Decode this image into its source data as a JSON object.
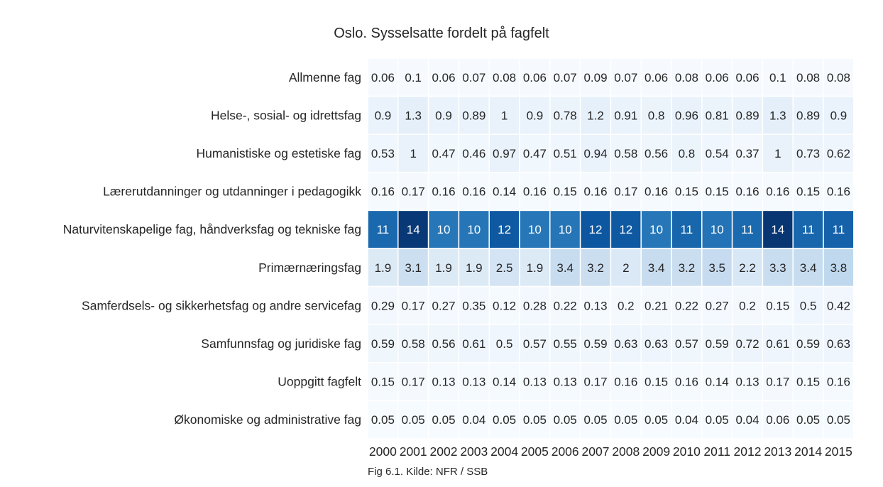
{
  "chart_data": {
    "type": "heatmap",
    "title": "Oslo. Sysselsatte fordelt på fagfelt",
    "caption": "Fig 6.1. Kilde: NFR / SSB",
    "colormap": "Blues",
    "color_min": 0,
    "color_max": 14,
    "x": [
      "2000",
      "2001",
      "2002",
      "2003",
      "2004",
      "2005",
      "2006",
      "2007",
      "2008",
      "2009",
      "2010",
      "2011",
      "2012",
      "2013",
      "2014",
      "2015"
    ],
    "y": [
      "Allmenne fag",
      "Helse-, sosial- og idrettsfag",
      "Humanistiske og estetiske fag",
      "Lærerutdanninger og utdanninger i pedagogikk",
      "Naturvitenskapelige fag, håndverksfag og tekniske fag",
      "Primærnæringsfag",
      "Samferdsels- og sikkerhetsfag og andre servicefag",
      "Samfunnsfag og juridiske fag",
      "Uoppgitt fagfelt",
      "Økonomiske og administrative fag"
    ],
    "labels": [
      [
        "0.06",
        "0.1",
        "0.06",
        "0.07",
        "0.08",
        "0.06",
        "0.07",
        "0.09",
        "0.07",
        "0.06",
        "0.08",
        "0.06",
        "0.06",
        "0.1",
        "0.08",
        "0.08"
      ],
      [
        "0.9",
        "1.3",
        "0.9",
        "0.89",
        "1",
        "0.9",
        "0.78",
        "1.2",
        "0.91",
        "0.8",
        "0.96",
        "0.81",
        "0.89",
        "1.3",
        "0.89",
        "0.9"
      ],
      [
        "0.53",
        "1",
        "0.47",
        "0.46",
        "0.97",
        "0.47",
        "0.51",
        "0.94",
        "0.58",
        "0.56",
        "0.8",
        "0.54",
        "0.37",
        "1",
        "0.73",
        "0.62"
      ],
      [
        "0.16",
        "0.17",
        "0.16",
        "0.16",
        "0.14",
        "0.16",
        "0.15",
        "0.16",
        "0.17",
        "0.16",
        "0.15",
        "0.15",
        "0.16",
        "0.16",
        "0.15",
        "0.16"
      ],
      [
        "11",
        "14",
        "10",
        "10",
        "12",
        "10",
        "10",
        "12",
        "12",
        "10",
        "11",
        "10",
        "11",
        "14",
        "11",
        "11"
      ],
      [
        "1.9",
        "3.1",
        "1.9",
        "1.9",
        "2.5",
        "1.9",
        "3.4",
        "3.2",
        "2",
        "3.4",
        "3.2",
        "3.5",
        "2.2",
        "3.3",
        "3.4",
        "3.8"
      ],
      [
        "0.29",
        "0.17",
        "0.27",
        "0.35",
        "0.12",
        "0.28",
        "0.22",
        "0.13",
        "0.2",
        "0.21",
        "0.22",
        "0.27",
        "0.2",
        "0.15",
        "0.5",
        "0.42"
      ],
      [
        "0.59",
        "0.58",
        "0.56",
        "0.61",
        "0.5",
        "0.57",
        "0.55",
        "0.59",
        "0.63",
        "0.63",
        "0.57",
        "0.59",
        "0.72",
        "0.61",
        "0.59",
        "0.63"
      ],
      [
        "0.15",
        "0.17",
        "0.13",
        "0.13",
        "0.14",
        "0.13",
        "0.13",
        "0.17",
        "0.16",
        "0.15",
        "0.16",
        "0.14",
        "0.13",
        "0.17",
        "0.15",
        "0.16"
      ],
      [
        "0.05",
        "0.05",
        "0.05",
        "0.04",
        "0.05",
        "0.05",
        "0.05",
        "0.05",
        "0.05",
        "0.05",
        "0.04",
        "0.05",
        "0.04",
        "0.06",
        "0.05",
        "0.05"
      ]
    ],
    "values": [
      [
        0.06,
        0.1,
        0.06,
        0.07,
        0.08,
        0.06,
        0.07,
        0.09,
        0.07,
        0.06,
        0.08,
        0.06,
        0.06,
        0.1,
        0.08,
        0.08
      ],
      [
        0.9,
        1.3,
        0.9,
        0.89,
        1,
        0.9,
        0.78,
        1.2,
        0.91,
        0.8,
        0.96,
        0.81,
        0.89,
        1.3,
        0.89,
        0.9
      ],
      [
        0.53,
        1,
        0.47,
        0.46,
        0.97,
        0.47,
        0.51,
        0.94,
        0.58,
        0.56,
        0.8,
        0.54,
        0.37,
        1,
        0.73,
        0.62
      ],
      [
        0.16,
        0.17,
        0.16,
        0.16,
        0.14,
        0.16,
        0.15,
        0.16,
        0.17,
        0.16,
        0.15,
        0.15,
        0.16,
        0.16,
        0.15,
        0.16
      ],
      [
        11.0,
        13.6,
        10.2,
        10.3,
        11.8,
        10.2,
        10.3,
        11.9,
        11.8,
        10.2,
        11.1,
        10.4,
        10.9,
        13.7,
        11.1,
        11.3
      ],
      [
        1.9,
        3.1,
        1.9,
        1.9,
        2.5,
        1.9,
        3.4,
        3.2,
        2,
        3.4,
        3.2,
        3.5,
        2.2,
        3.3,
        3.4,
        3.8
      ],
      [
        0.29,
        0.17,
        0.27,
        0.35,
        0.12,
        0.28,
        0.22,
        0.13,
        0.2,
        0.21,
        0.22,
        0.27,
        0.2,
        0.15,
        0.5,
        0.42
      ],
      [
        0.59,
        0.58,
        0.56,
        0.61,
        0.5,
        0.57,
        0.55,
        0.59,
        0.63,
        0.63,
        0.57,
        0.59,
        0.72,
        0.61,
        0.59,
        0.63
      ],
      [
        0.15,
        0.17,
        0.13,
        0.13,
        0.14,
        0.13,
        0.13,
        0.17,
        0.16,
        0.15,
        0.16,
        0.14,
        0.13,
        0.17,
        0.15,
        0.16
      ],
      [
        0.05,
        0.05,
        0.05,
        0.04,
        0.05,
        0.05,
        0.05,
        0.05,
        0.05,
        0.05,
        0.04,
        0.05,
        0.04,
        0.06,
        0.05,
        0.05
      ]
    ]
  }
}
